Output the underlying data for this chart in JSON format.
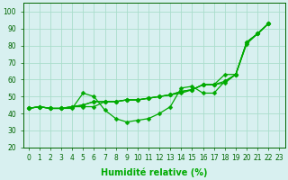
{
  "xlabel": "Humidité relative (%)",
  "xlim": [
    -0.5,
    23.5
  ],
  "ylim": [
    20,
    105
  ],
  "yticks": [
    20,
    30,
    40,
    50,
    60,
    70,
    80,
    90,
    100
  ],
  "xticks": [
    0,
    1,
    2,
    3,
    4,
    5,
    6,
    7,
    8,
    9,
    10,
    11,
    12,
    13,
    14,
    15,
    16,
    17,
    18,
    19,
    20,
    21,
    22,
    23
  ],
  "bg_color": "#d8f0f0",
  "grid_color": "#aaddcc",
  "line_color": "#00aa00",
  "lines": [
    [
      43,
      44,
      43,
      43,
      43,
      52,
      50,
      42,
      37,
      35,
      36,
      37,
      40,
      44,
      55,
      56,
      52,
      52,
      59,
      63,
      81,
      87,
      93
    ],
    [
      43,
      44,
      43,
      43,
      44,
      44,
      44,
      47,
      47,
      48,
      48,
      49,
      50,
      51,
      52,
      54,
      57,
      57,
      58,
      63,
      82,
      87,
      93
    ],
    [
      43,
      44,
      43,
      43,
      44,
      45,
      47,
      47,
      47,
      48,
      48,
      49,
      50,
      51,
      53,
      54,
      57,
      57,
      59,
      63,
      82,
      87,
      93
    ],
    [
      43,
      44,
      43,
      43,
      44,
      45,
      47,
      47,
      47,
      48,
      48,
      49,
      50,
      51,
      53,
      54,
      57,
      57,
      63,
      63,
      82,
      87,
      93
    ]
  ],
  "marker": "D",
  "markersize": 2.5,
  "linewidth": 0.9,
  "xlabel_fontsize": 7,
  "tick_fontsize": 5.5
}
